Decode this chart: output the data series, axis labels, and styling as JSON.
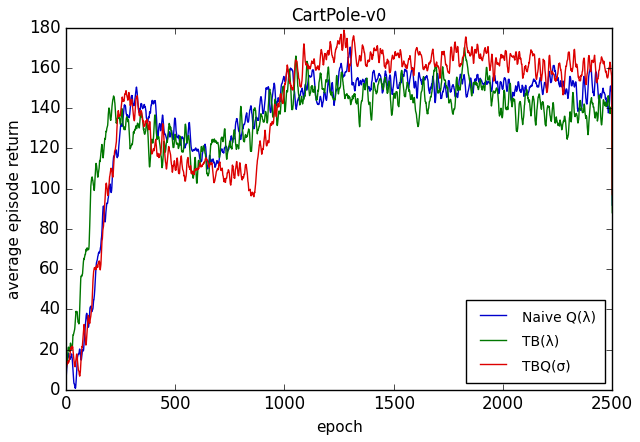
{
  "title": "CartPole-v0",
  "xlabel": "epoch",
  "ylabel": "average episode return",
  "xlim": [
    0,
    2500
  ],
  "ylim": [
    0,
    180
  ],
  "xticks": [
    0,
    500,
    1000,
    1500,
    2000,
    2500
  ],
  "yticks": [
    0,
    20,
    40,
    60,
    80,
    100,
    120,
    140,
    160,
    180
  ],
  "blue_color": "#0000cc",
  "green_color": "#007700",
  "red_color": "#dd0000",
  "legend_labels": [
    "Naive Q(λ)",
    "TB(λ)",
    "TBQ(σ)"
  ],
  "legend_loc": "lower right",
  "seed": 12345
}
